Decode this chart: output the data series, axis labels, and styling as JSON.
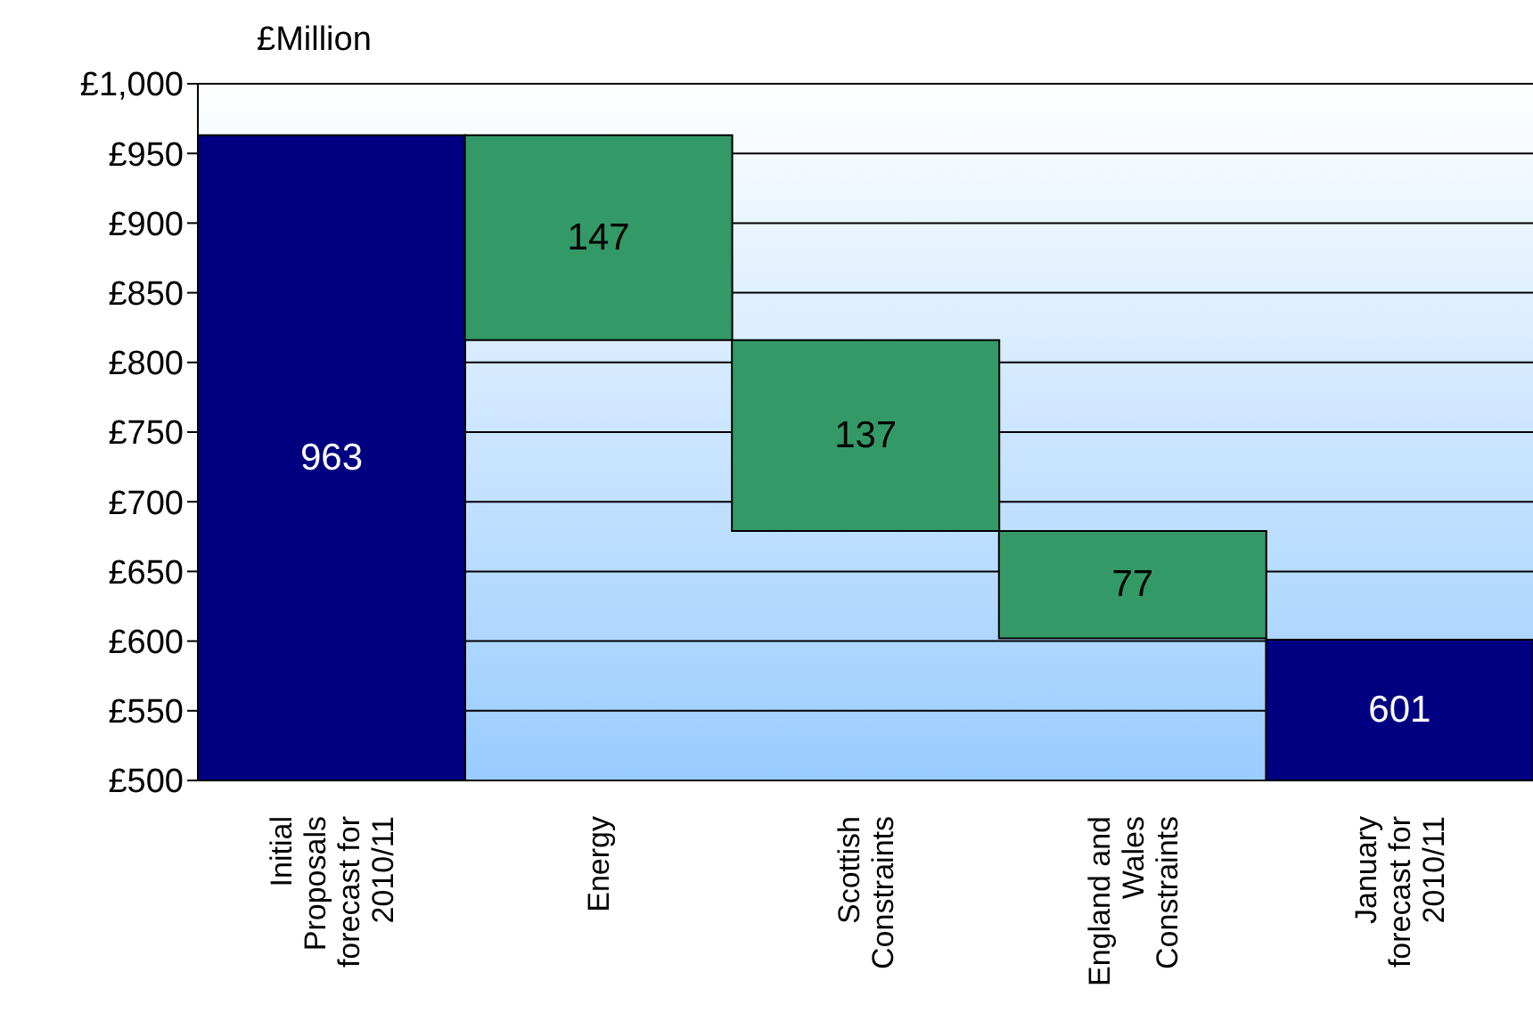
{
  "chart_data": {
    "type": "bar",
    "ylabel": "£Million",
    "categories": [
      "Initial Proposals forecast for 2010/11",
      "Energy",
      "Scottish Constraints",
      "England and Wales Constraints",
      "January forecast for 2010/11"
    ],
    "values": [
      963,
      147,
      137,
      77,
      601
    ],
    "base": [
      null,
      816,
      679,
      602,
      null
    ],
    "colors": [
      "#000080",
      "#339966",
      "#339966",
      "#339966",
      "#000080"
    ],
    "ylim": [
      500,
      1000
    ],
    "yticks": [
      {
        "value": 500,
        "label": "£500"
      },
      {
        "value": 550,
        "label": "£550"
      },
      {
        "value": 600,
        "label": "£600"
      },
      {
        "value": 650,
        "label": "£650"
      },
      {
        "value": 700,
        "label": "£700"
      },
      {
        "value": 750,
        "label": "£750"
      },
      {
        "value": 800,
        "label": "£800"
      },
      {
        "value": 850,
        "label": "£850"
      },
      {
        "value": 900,
        "label": "£900"
      },
      {
        "value": 950,
        "label": "£950"
      },
      {
        "value": 1000,
        "label": "£1,000"
      }
    ],
    "grid": "y",
    "data_labels": true
  }
}
